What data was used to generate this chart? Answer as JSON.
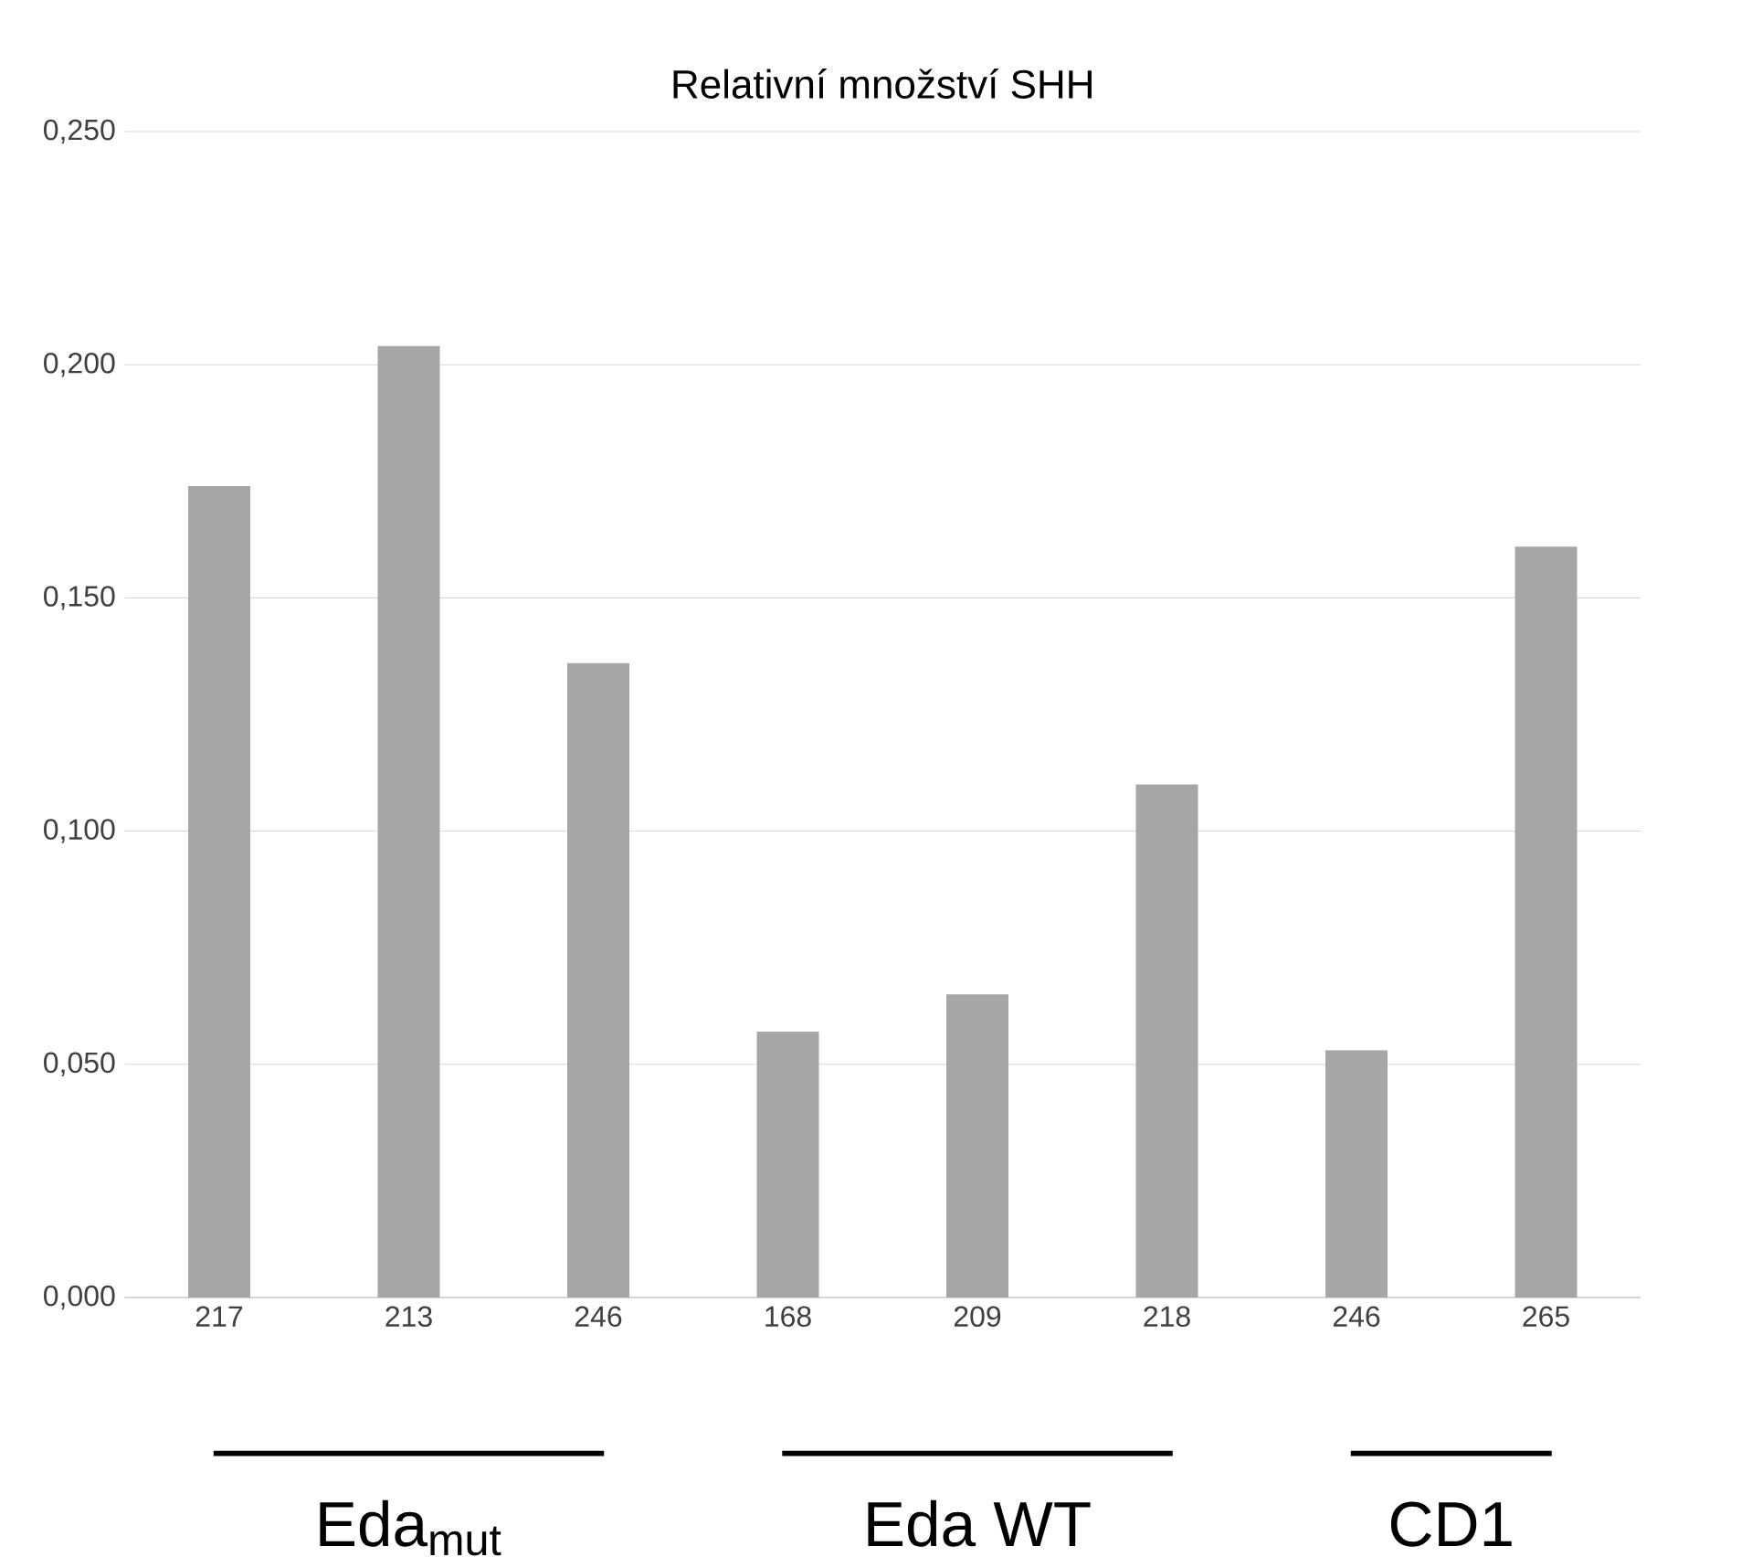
{
  "chart_data": {
    "type": "bar",
    "title": "Relativní množství SHH",
    "categories": [
      "217",
      "213",
      "246",
      "168",
      "209",
      "218",
      "246",
      "265"
    ],
    "values": [
      0.174,
      0.204,
      0.136,
      0.057,
      0.065,
      0.11,
      0.053,
      0.161
    ],
    "color": "#a6a6a6",
    "ylim": [
      0,
      0.25
    ],
    "yticks": [
      {
        "value": 0,
        "label": "0,000"
      },
      {
        "value": 0.05,
        "label": "0,050"
      },
      {
        "value": 0.1,
        "label": "0,100"
      },
      {
        "value": 0.15,
        "label": "0,150"
      },
      {
        "value": 0.2,
        "label": "0,200"
      },
      {
        "value": 0.25,
        "label": "0,250"
      }
    ],
    "grid": "y",
    "annotations": [
      "Eda$_{mut}$",
      "Eda WT",
      "CD1"
    ]
  }
}
